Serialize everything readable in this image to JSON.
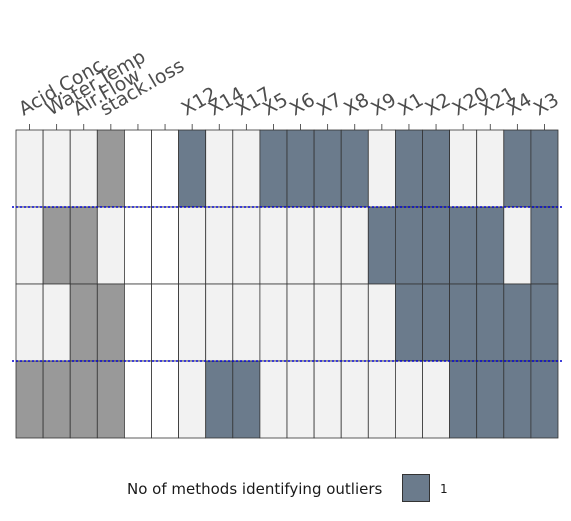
{
  "chart_data": {
    "type": "heatmap",
    "columns": [
      "Acid.Conc.",
      "Water.Temp",
      "Air.Flow",
      "stack.loss",
      "",
      "",
      "X12",
      "X14",
      "X17",
      "X5",
      "X6",
      "X7",
      "X8",
      "X9",
      "X1",
      "X2",
      "X20",
      "X21",
      "X4",
      "X3"
    ],
    "rows": [
      {
        "cells": [
          "light",
          "light",
          "light",
          "var",
          "blank",
          "blank",
          "out",
          "light",
          "light",
          "out",
          "out",
          "out",
          "out",
          "light",
          "out",
          "out",
          "light",
          "light",
          "out",
          "out"
        ]
      },
      {
        "cells": [
          "light",
          "var",
          "var",
          "light",
          "blank",
          "blank",
          "light",
          "light",
          "light",
          "light",
          "light",
          "light",
          "light",
          "out",
          "out",
          "out",
          "out",
          "out",
          "light",
          "out"
        ]
      },
      {
        "cells": [
          "light",
          "light",
          "var",
          "var",
          "blank",
          "blank",
          "light",
          "light",
          "light",
          "light",
          "light",
          "light",
          "light",
          "light",
          "out",
          "out",
          "out",
          "out",
          "out",
          "out"
        ]
      },
      {
        "cells": [
          "var",
          "var",
          "var",
          "var",
          "blank",
          "blank",
          "light",
          "out",
          "out",
          "light",
          "light",
          "light",
          "light",
          "light",
          "light",
          "light",
          "out",
          "out",
          "out",
          "out"
        ]
      }
    ],
    "separators_after_rows": [
      0,
      2
    ],
    "colors": {
      "out": "#6b7b8c",
      "var": "#999999",
      "light": "#f2f2f2",
      "blank": "#ffffff",
      "separator": "#0000cc"
    },
    "legend": {
      "title": "No of methods identifying outliers",
      "values": [
        "1"
      ],
      "colors": [
        "#6b7b8c"
      ]
    }
  }
}
